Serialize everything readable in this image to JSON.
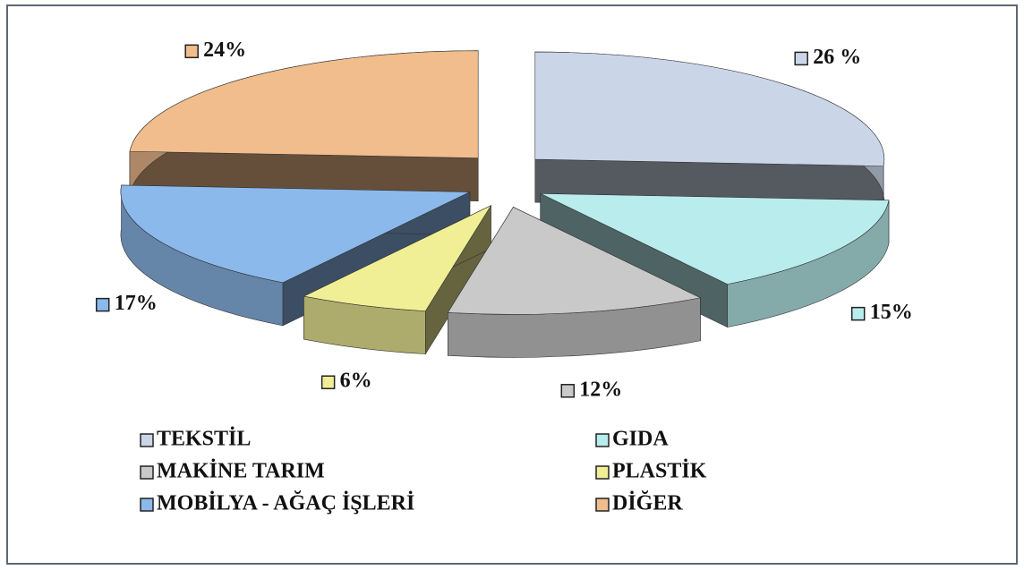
{
  "chart_data": {
    "type": "pie3d",
    "categories": [
      "TEKSTİL",
      "GIDA",
      "MAKİNE TARIM",
      "PLASTİK",
      "MOBİLYA - AĞAÇ İŞLERİ",
      "DİĞER"
    ],
    "values": [
      26,
      15,
      12,
      6,
      17,
      24
    ],
    "value_labels": [
      "26 %",
      "15%",
      "12%",
      "6%",
      "17%",
      "24%"
    ],
    "colors": [
      "#cad6e8",
      "#b9ecec",
      "#c9c9c9",
      "#f1ef96",
      "#8cb9eb",
      "#f1bd8d"
    ],
    "legend": "bottom"
  }
}
